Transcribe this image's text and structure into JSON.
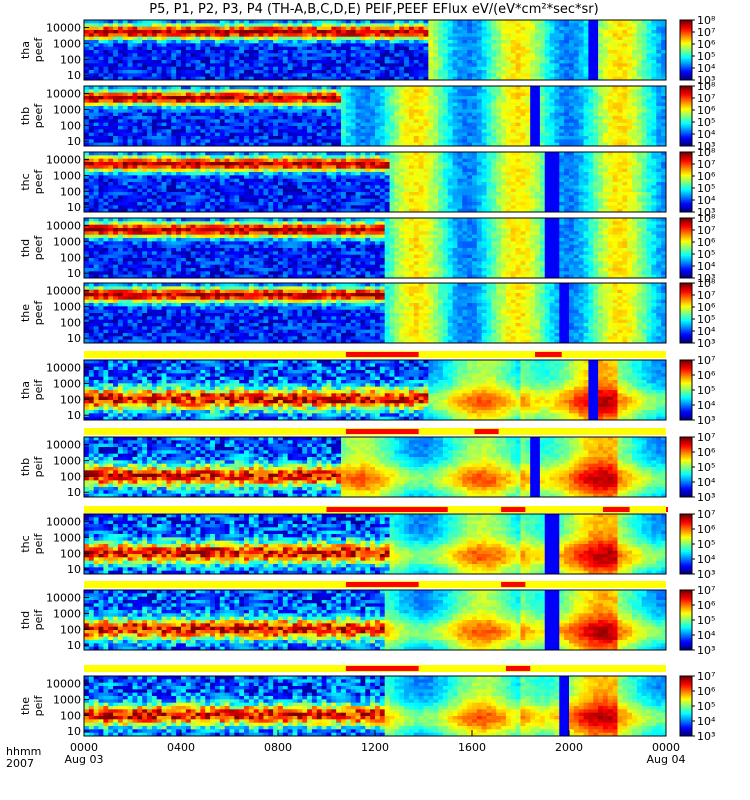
{
  "chart_data": {
    "type": "heatmap",
    "title": "P5, P1, P2, P3, P4 (TH-A,B,C,D,E) PEIF,PEEF EFlux eV/(eV*cm²*sec*sr)",
    "x_axis": {
      "row_label_1": "hhmm",
      "row_label_2": "2007",
      "range_hours": [
        0,
        24
      ],
      "ticks": [
        {
          "hour": 0,
          "label": "0000",
          "sub": "Aug 03"
        },
        {
          "hour": 4,
          "label": "0400",
          "sub": ""
        },
        {
          "hour": 8,
          "label": "0800",
          "sub": ""
        },
        {
          "hour": 12,
          "label": "1200",
          "sub": ""
        },
        {
          "hour": 16,
          "label": "1600",
          "sub": ""
        },
        {
          "hour": 20,
          "label": "2000",
          "sub": ""
        },
        {
          "hour": 24,
          "label": "0000",
          "sub": "Aug 04"
        }
      ]
    },
    "y_axis": {
      "scale": "log",
      "range_eV": [
        5,
        30000
      ],
      "tick_labels": [
        "10",
        "100",
        "1000",
        "10000"
      ]
    },
    "electron_colorbar": {
      "scale": "log",
      "range": [
        1000,
        100000000
      ],
      "tick_labels": [
        "10³",
        "10⁴",
        "10⁵",
        "10⁶",
        "10⁷",
        "10⁸"
      ]
    },
    "ion_colorbar": {
      "scale": "log",
      "range": [
        1000,
        10000000
      ],
      "tick_labels": [
        "10³",
        "10⁴",
        "10⁵",
        "10⁶",
        "10⁷"
      ]
    },
    "panels": [
      {
        "label_1": "tha",
        "label_2": "peef",
        "species": "electron",
        "boundary_hour": 14.2,
        "gap_hour": 21.0,
        "flux": "electron"
      },
      {
        "label_1": "thb",
        "label_2": "peef",
        "species": "electron",
        "boundary_hour": 10.6,
        "gap_hour": 18.6,
        "flux": "electron"
      },
      {
        "label_1": "thc",
        "label_2": "peef",
        "species": "electron",
        "boundary_hour": 12.6,
        "gap_hour": 19.3,
        "flux": "electron"
      },
      {
        "label_1": "thd",
        "label_2": "peef",
        "species": "electron",
        "boundary_hour": 12.5,
        "gap_hour": 19.3,
        "flux": "electron"
      },
      {
        "label_1": "the",
        "label_2": "peef",
        "species": "electron",
        "boundary_hour": 12.5,
        "gap_hour": 19.8,
        "flux": "electron"
      },
      {
        "label_1": "tha",
        "label_2": "peif",
        "species": "ion",
        "boundary_hour": 14.2,
        "gap_hour": 21.0,
        "flux": "ion"
      },
      {
        "label_1": "thb",
        "label_2": "peif",
        "species": "ion",
        "boundary_hour": 10.6,
        "gap_hour": 18.6,
        "flux": "ion"
      },
      {
        "label_1": "thc",
        "label_2": "peif",
        "species": "ion",
        "boundary_hour": 12.6,
        "gap_hour": 19.3,
        "flux": "ion"
      },
      {
        "label_1": "thd",
        "label_2": "peif",
        "species": "ion",
        "boundary_hour": 12.5,
        "gap_hour": 19.3,
        "flux": "ion"
      },
      {
        "label_1": "the",
        "label_2": "peif",
        "species": "ion",
        "boundary_hour": 12.5,
        "gap_hour": 19.8,
        "flux": "ion"
      }
    ],
    "mode_bars": [
      {
        "segments_hours": [
          [
            10.8,
            13.8
          ],
          [
            18.6,
            19.7
          ]
        ]
      },
      {
        "segments_hours": [
          [
            10.8,
            13.8
          ],
          [
            16.1,
            17.1
          ]
        ]
      },
      {
        "segments_hours": [
          [
            10.0,
            15.0
          ],
          [
            17.2,
            18.2
          ],
          [
            21.4,
            22.5
          ],
          [
            24.0,
            24.0
          ]
        ]
      },
      {
        "segments_hours": [
          [
            10.8,
            13.8
          ],
          [
            17.2,
            18.2
          ]
        ]
      },
      {
        "segments_hours": [
          [
            10.8,
            13.8
          ],
          [
            17.4,
            18.4
          ]
        ]
      }
    ],
    "colors": {
      "mode_bar_background": "#ffff00",
      "mode_bar_segment": "#ff0000"
    }
  }
}
